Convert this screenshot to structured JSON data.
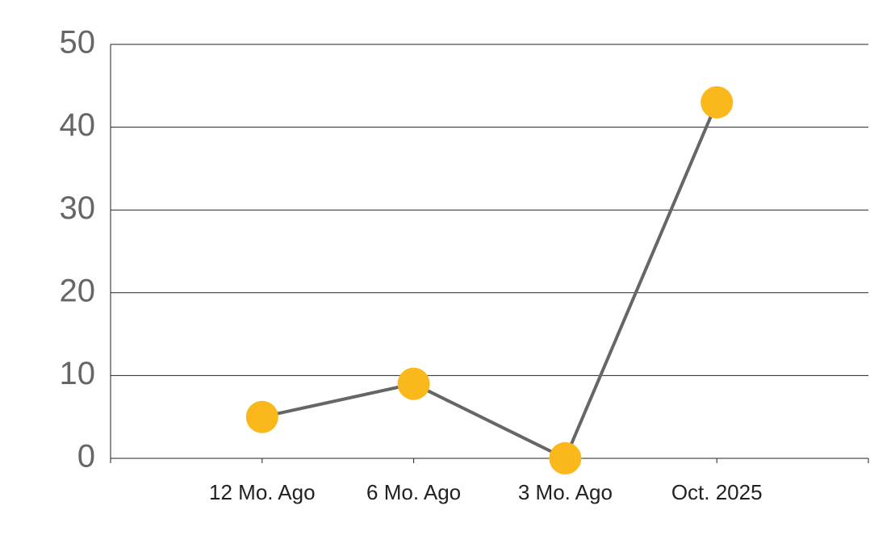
{
  "chart_data": {
    "type": "line",
    "categories": [
      "12 Mo. Ago",
      "6 Mo. Ago",
      "3 Mo. Ago",
      "Oct. 2025"
    ],
    "values": [
      5,
      9,
      0,
      43
    ],
    "line_color": "#666666",
    "marker_color": "#fbb81a",
    "ylim": [
      0,
      50
    ],
    "yticks": [
      0,
      10,
      20,
      30,
      40,
      50
    ],
    "grid": true
  }
}
